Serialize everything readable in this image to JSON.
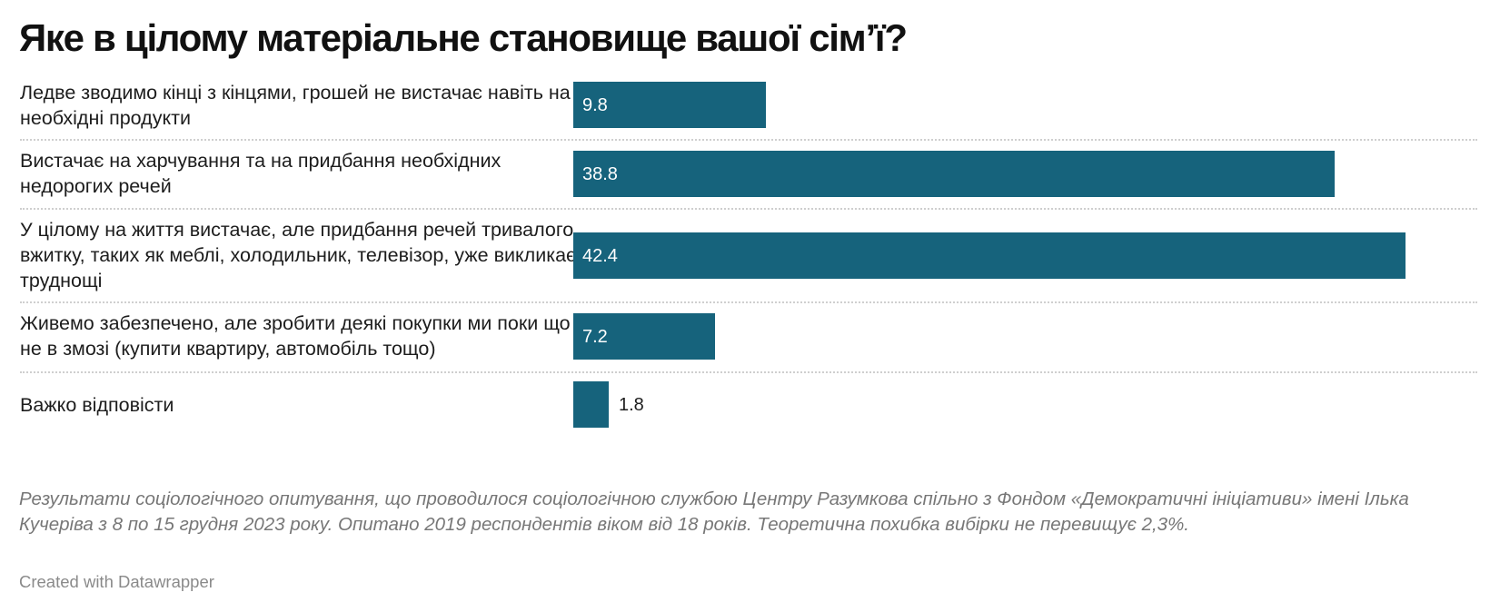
{
  "title": "Яке в цілому матеріальне становище вашої сім’ї?",
  "chart_data": {
    "type": "bar",
    "orientation": "horizontal",
    "title": "Яке в цілому матеріальне становище вашої сім’ї?",
    "categories": [
      "Ледве зводимо кінці з кінцями, грошей не вистачає навіть на необхідні продукти",
      "Вистачає на харчування та на придбання необхідних недорогих речей",
      "У цілому на життя вистачає, але придбання речей тривалого вжитку, таких як меблі, холодильник, телевізор, уже викликає труднощі",
      "Живемо забезпечено, але зробити деякі покупки ми поки що не в змозі (купити квартиру, автомобіль тощо)",
      "Важко відповісти"
    ],
    "values": [
      9.8,
      38.8,
      42.4,
      7.2,
      1.8
    ],
    "value_labels": [
      "9.8",
      "38.8",
      "42.4",
      "7.2",
      "1.8"
    ],
    "xlim": [
      0,
      42.4
    ],
    "grid": false,
    "bar_color": "#16637c"
  },
  "notes": "Результати соціологічного опитування, що проводилося соціологічною службою Центру Разумкова спільно з Фондом «Демократичні ініціативи» імені Ілька Кучеріва з 8 по 15 грудня 2023 року. Опитано 2019 респондентів віком від 18 років. Теоретична похибка вибірки не перевищує 2,3%.",
  "credit": "Created with Datawrapper"
}
